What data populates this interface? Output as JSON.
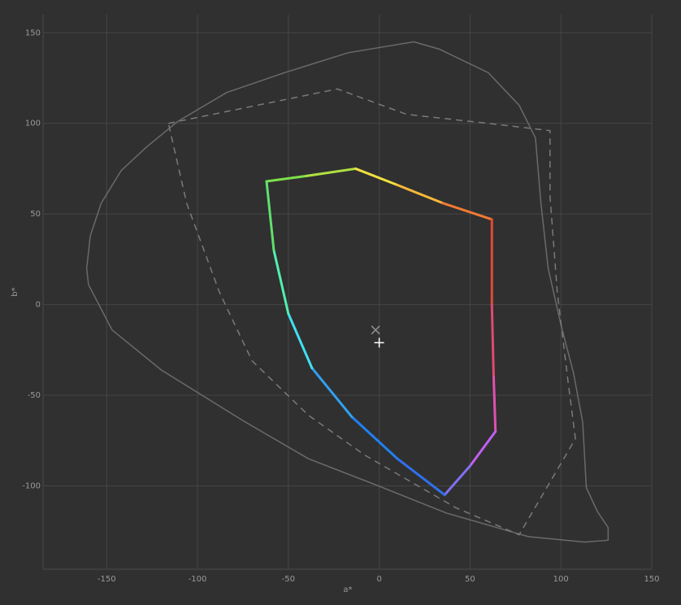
{
  "chart_data": {
    "type": "gamut",
    "x_label": "a*",
    "y_label": "b*",
    "xlim": [
      -185,
      150
    ],
    "ylim": [
      -146,
      160
    ],
    "xticks": [
      -150,
      -100,
      -50,
      0,
      50,
      100,
      150
    ],
    "yticks": [
      -100,
      -50,
      0,
      50,
      100,
      150
    ],
    "grid": true,
    "outlines": [
      {
        "style": "solid",
        "color": "#6a6a6a",
        "x": [
          -161,
          -159,
          -153,
          -142,
          -128,
          -111,
          -84,
          -52,
          -17,
          19,
          33,
          60,
          77,
          86,
          89,
          93,
          100,
          107,
          112,
          114,
          120,
          126,
          126,
          113,
          82,
          37,
          -3,
          -39,
          -75,
          -120,
          -147,
          -160,
          -161
        ],
        "y": [
          20,
          38,
          56,
          74,
          87,
          101,
          117,
          128,
          139,
          145,
          141,
          128,
          110,
          92,
          56,
          20,
          -11,
          -38,
          -65,
          -101,
          -114,
          -123,
          -130,
          -131,
          -128,
          -115,
          -99,
          -85,
          -64,
          -36,
          -14,
          11,
          20
        ]
      },
      {
        "style": "dashed",
        "color": "#7a7a7a",
        "x": [
          -116,
          -23,
          15,
          60,
          94,
          94,
          98,
          104,
          108,
          77,
          42,
          -8,
          -39,
          -70,
          -88,
          -106,
          -116
        ],
        "y": [
          100,
          119,
          105,
          100,
          96,
          60,
          7,
          -43,
          -74,
          -127,
          -112,
          -83,
          -61,
          -31,
          7,
          56,
          100
        ]
      }
    ],
    "gamut": {
      "x": [
        -62,
        -40,
        -13,
        10,
        35,
        62,
        62,
        63,
        64,
        50,
        36,
        10,
        -15,
        -37,
        -50,
        -58,
        -62
      ],
      "y": [
        68,
        71,
        75,
        66,
        56,
        47,
        0,
        -40,
        -70,
        -89,
        -105,
        -85,
        -62,
        -35,
        -5,
        30,
        68
      ],
      "colors": [
        "#7de04a",
        "#b0e040",
        "#f0e040",
        "#f5b83a",
        "#f07a35",
        "#e04a35",
        "#e04a70",
        "#e050b0",
        "#c060f0",
        "#8070f0",
        "#3070f0",
        "#2080f0",
        "#30a0f0",
        "#40e0f0",
        "#50f0b0",
        "#60e070",
        "#7de04a"
      ]
    },
    "markers": [
      {
        "shape": "x",
        "x": -2,
        "y": -14,
        "color": "#909090"
      },
      {
        "shape": "plus",
        "x": 0,
        "y": -21,
        "color": "#ffffff"
      }
    ]
  }
}
